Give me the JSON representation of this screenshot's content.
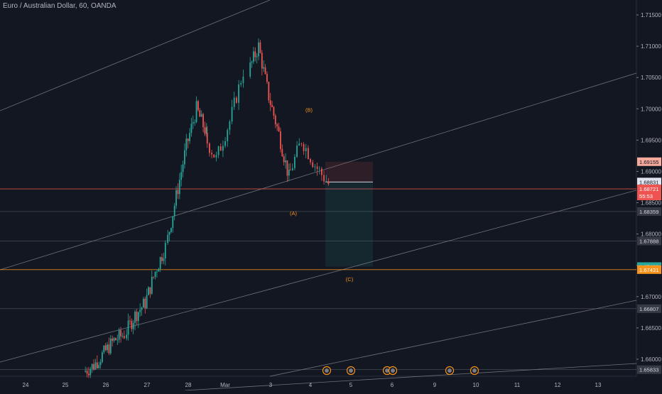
{
  "header": {
    "title": "Euro / Australian Dollar, 60, OANDA"
  },
  "colors": {
    "background": "#131722",
    "up": "#26a69a",
    "down": "#ef5350",
    "grid_text": "#b2b5be",
    "orange": "#f7931a",
    "green_label": "#26a69a",
    "red_label": "#ef5350"
  },
  "chart_data": {
    "type": "candlestick",
    "xlabel": "",
    "ylabel": "",
    "x_ticks": [
      "24",
      "25",
      "26",
      "27",
      "28",
      "Mar",
      "3",
      "4",
      "5",
      "6",
      "9",
      "10",
      "11",
      "12",
      "13"
    ],
    "y_ticks": [
      "1.71500",
      "1.71000",
      "1.70500",
      "1.70000",
      "1.69500",
      "1.69000",
      "1.68500",
      "1.68000",
      "1.67500",
      "1.67000",
      "1.66500",
      "1.66000"
    ],
    "ylim": [
      1.6575,
      1.7165
    ],
    "price_labels": [
      {
        "text": "1.69155",
        "value": 1.69155,
        "style": "red-outline"
      },
      {
        "text": "1.68831",
        "value": 1.68831,
        "style": "white"
      },
      {
        "text": "1.68721",
        "value": 1.68721,
        "style": "red"
      },
      {
        "text": "55:53",
        "value": 1.686,
        "style": "red"
      },
      {
        "text": "1.68359",
        "value": 1.68359,
        "style": "gray"
      },
      {
        "text": "1.67888",
        "value": 1.67888,
        "style": "gray"
      },
      {
        "text": "1.67480",
        "value": 1.6748,
        "style": "green"
      },
      {
        "text": "1.67431",
        "value": 1.67431,
        "style": "orange"
      },
      {
        "text": "1.66807",
        "value": 1.66807,
        "style": "gray"
      },
      {
        "text": "1.65833",
        "value": 1.65833,
        "style": "gray"
      }
    ],
    "annotations": [
      {
        "text": "(B)",
        "x": "4",
        "y": 1.6995
      },
      {
        "text": "(A)",
        "x": "3",
        "y": 1.683
      },
      {
        "text": "(C)",
        "x": "5",
        "y": 1.6725
      }
    ],
    "horizontal_lines": [
      {
        "value": 1.68721,
        "color": "red"
      },
      {
        "value": 1.68359,
        "color": "gray"
      },
      {
        "value": 1.67888,
        "color": "gray"
      },
      {
        "value": 1.67431,
        "color": "orange"
      },
      {
        "value": 1.66807,
        "color": "gray"
      },
      {
        "value": 1.65833,
        "color": "gray"
      }
    ],
    "short_position": {
      "entry": 1.68831,
      "stop": 1.69155,
      "target": 1.6748
    },
    "candles_hourly": [
      {
        "t": "26",
        "o": 1.658,
        "h": 1.66,
        "l": 1.657,
        "c": 1.659
      },
      {
        "t": "26",
        "o": 1.659,
        "h": 1.662,
        "l": 1.6585,
        "c": 1.661
      },
      {
        "t": "26",
        "o": 1.661,
        "h": 1.664,
        "l": 1.66,
        "c": 1.663
      },
      {
        "t": "26",
        "o": 1.663,
        "h": 1.666,
        "l": 1.661,
        "c": 1.664
      },
      {
        "t": "27",
        "o": 1.664,
        "h": 1.668,
        "l": 1.663,
        "c": 1.667
      },
      {
        "t": "27",
        "o": 1.667,
        "h": 1.67,
        "l": 1.665,
        "c": 1.669
      },
      {
        "t": "27",
        "o": 1.669,
        "h": 1.675,
        "l": 1.668,
        "c": 1.674
      },
      {
        "t": "27",
        "o": 1.674,
        "h": 1.679,
        "l": 1.672,
        "c": 1.678
      },
      {
        "t": "28",
        "o": 1.678,
        "h": 1.688,
        "l": 1.677,
        "c": 1.686
      },
      {
        "t": "28",
        "o": 1.686,
        "h": 1.696,
        "l": 1.684,
        "c": 1.694
      },
      {
        "t": "28",
        "o": 1.694,
        "h": 1.702,
        "l": 1.689,
        "c": 1.7
      },
      {
        "t": "28",
        "o": 1.7,
        "h": 1.706,
        "l": 1.694,
        "c": 1.696
      },
      {
        "t": "Mar",
        "o": 1.696,
        "h": 1.7,
        "l": 1.69,
        "c": 1.692
      },
      {
        "t": "Mar",
        "o": 1.692,
        "h": 1.699,
        "l": 1.69,
        "c": 1.698
      },
      {
        "t": "Mar",
        "o": 1.698,
        "h": 1.708,
        "l": 1.697,
        "c": 1.706
      },
      {
        "t": "3",
        "o": 1.706,
        "h": 1.7125,
        "l": 1.704,
        "c": 1.71
      },
      {
        "t": "3",
        "o": 1.71,
        "h": 1.711,
        "l": 1.7,
        "c": 1.702
      },
      {
        "t": "3",
        "o": 1.702,
        "h": 1.704,
        "l": 1.694,
        "c": 1.696
      },
      {
        "t": "3",
        "o": 1.696,
        "h": 1.698,
        "l": 1.687,
        "c": 1.689
      },
      {
        "t": "4",
        "o": 1.689,
        "h": 1.696,
        "l": 1.6835,
        "c": 1.695
      },
      {
        "t": "4",
        "o": 1.695,
        "h": 1.7,
        "l": 1.69,
        "c": 1.691
      },
      {
        "t": "4",
        "o": 1.691,
        "h": 1.693,
        "l": 1.6872,
        "c": 1.688
      }
    ]
  }
}
